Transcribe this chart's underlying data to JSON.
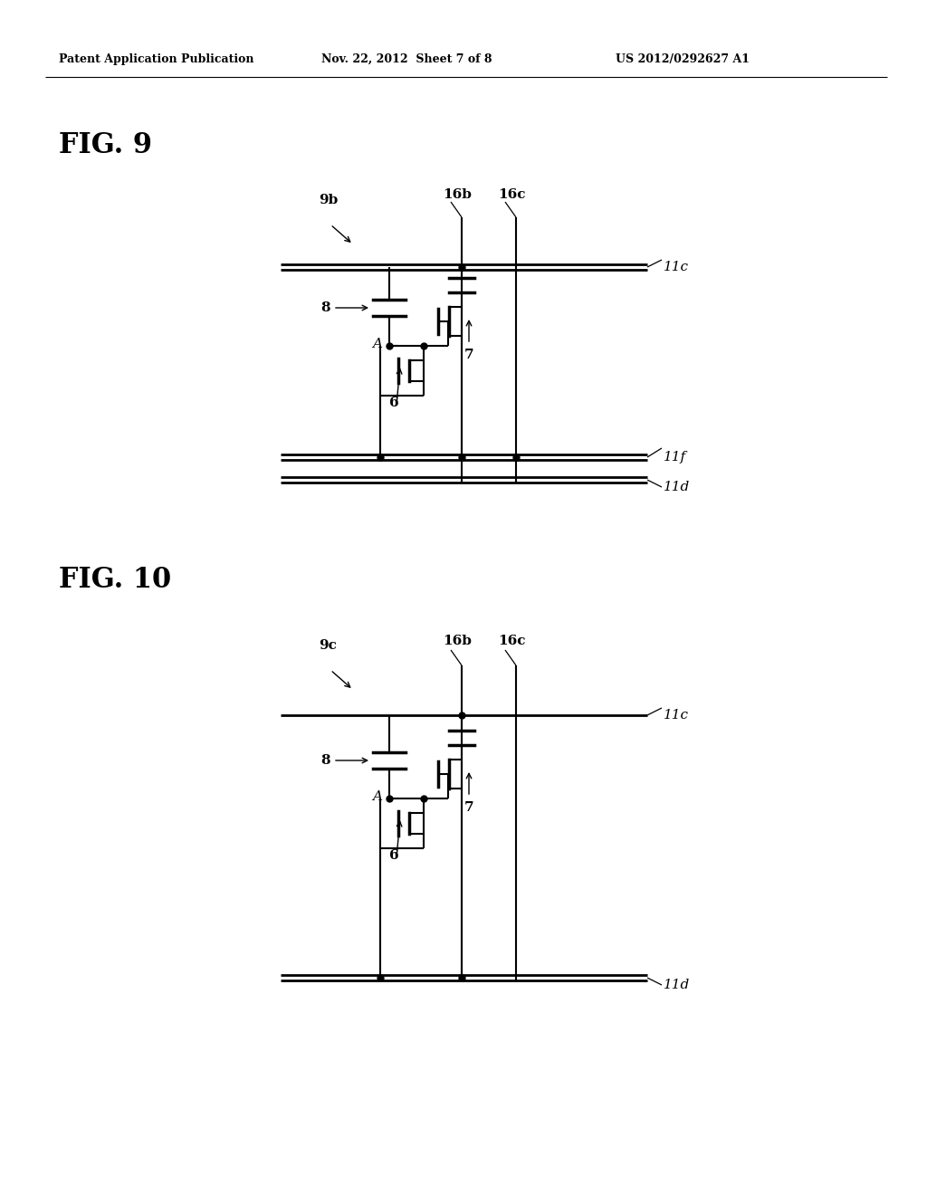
{
  "background_color": "#ffffff",
  "header_text": "Patent Application Publication",
  "header_date": "Nov. 22, 2012  Sheet 7 of 8",
  "header_patent": "US 2012/0292627 A1",
  "fig9_label": "FIG. 9",
  "fig10_label": "FIG. 10",
  "label_9b": "9b",
  "label_9c": "9c",
  "label_8": "8",
  "label_A": "A",
  "label_6": "6",
  "label_7": "7",
  "label_11c": "11c",
  "label_11f": "11f",
  "label_11d": "11d",
  "label_16b": "16b",
  "label_16c": "16c"
}
